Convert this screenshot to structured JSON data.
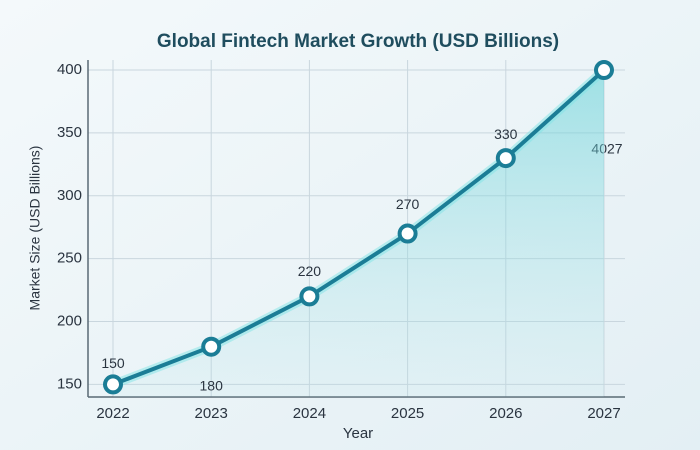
{
  "chart_data": {
    "type": "line",
    "title": "Global Fintech Market Growth (USD Billions)",
    "x_label": "Year",
    "y_label": "Market Size (USD Billions)",
    "categories": [
      "2022",
      "2023",
      "2024",
      "2025",
      "2026",
      "2027"
    ],
    "series": [
      {
        "name": "Market Size",
        "color": "#1b7d96",
        "values": [
          150,
          180,
          220,
          270,
          330,
          400
        ]
      }
    ],
    "annotations": [
      "4027"
    ],
    "ylim": [
      140,
      408
    ],
    "yticks": [
      150,
      200,
      250,
      300,
      350,
      400
    ],
    "grid": true
  }
}
